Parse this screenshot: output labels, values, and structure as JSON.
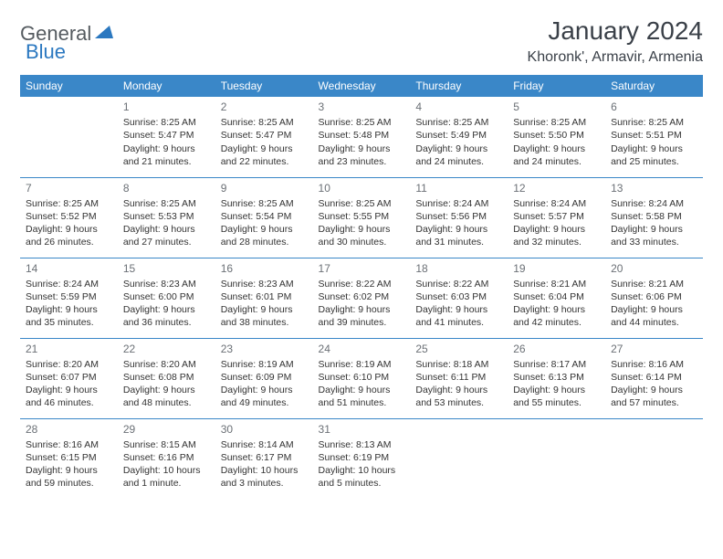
{
  "logo": {
    "general": "General",
    "blue": "Blue"
  },
  "title": "January 2024",
  "location": "Khoronk', Armavir, Armenia",
  "colors": {
    "header_bg": "#3a87c8",
    "header_text": "#ffffff",
    "day_number": "#6b7076",
    "rule": "#3a87c8",
    "logo_gray": "#555b60",
    "logo_blue": "#2b78c0"
  },
  "weekdays": [
    "Sunday",
    "Monday",
    "Tuesday",
    "Wednesday",
    "Thursday",
    "Friday",
    "Saturday"
  ],
  "weeks": [
    [
      null,
      {
        "n": "1",
        "sr": "Sunrise: 8:25 AM",
        "ss": "Sunset: 5:47 PM",
        "dl": "Daylight: 9 hours and 21 minutes."
      },
      {
        "n": "2",
        "sr": "Sunrise: 8:25 AM",
        "ss": "Sunset: 5:47 PM",
        "dl": "Daylight: 9 hours and 22 minutes."
      },
      {
        "n": "3",
        "sr": "Sunrise: 8:25 AM",
        "ss": "Sunset: 5:48 PM",
        "dl": "Daylight: 9 hours and 23 minutes."
      },
      {
        "n": "4",
        "sr": "Sunrise: 8:25 AM",
        "ss": "Sunset: 5:49 PM",
        "dl": "Daylight: 9 hours and 24 minutes."
      },
      {
        "n": "5",
        "sr": "Sunrise: 8:25 AM",
        "ss": "Sunset: 5:50 PM",
        "dl": "Daylight: 9 hours and 24 minutes."
      },
      {
        "n": "6",
        "sr": "Sunrise: 8:25 AM",
        "ss": "Sunset: 5:51 PM",
        "dl": "Daylight: 9 hours and 25 minutes."
      }
    ],
    [
      {
        "n": "7",
        "sr": "Sunrise: 8:25 AM",
        "ss": "Sunset: 5:52 PM",
        "dl": "Daylight: 9 hours and 26 minutes."
      },
      {
        "n": "8",
        "sr": "Sunrise: 8:25 AM",
        "ss": "Sunset: 5:53 PM",
        "dl": "Daylight: 9 hours and 27 minutes."
      },
      {
        "n": "9",
        "sr": "Sunrise: 8:25 AM",
        "ss": "Sunset: 5:54 PM",
        "dl": "Daylight: 9 hours and 28 minutes."
      },
      {
        "n": "10",
        "sr": "Sunrise: 8:25 AM",
        "ss": "Sunset: 5:55 PM",
        "dl": "Daylight: 9 hours and 30 minutes."
      },
      {
        "n": "11",
        "sr": "Sunrise: 8:24 AM",
        "ss": "Sunset: 5:56 PM",
        "dl": "Daylight: 9 hours and 31 minutes."
      },
      {
        "n": "12",
        "sr": "Sunrise: 8:24 AM",
        "ss": "Sunset: 5:57 PM",
        "dl": "Daylight: 9 hours and 32 minutes."
      },
      {
        "n": "13",
        "sr": "Sunrise: 8:24 AM",
        "ss": "Sunset: 5:58 PM",
        "dl": "Daylight: 9 hours and 33 minutes."
      }
    ],
    [
      {
        "n": "14",
        "sr": "Sunrise: 8:24 AM",
        "ss": "Sunset: 5:59 PM",
        "dl": "Daylight: 9 hours and 35 minutes."
      },
      {
        "n": "15",
        "sr": "Sunrise: 8:23 AM",
        "ss": "Sunset: 6:00 PM",
        "dl": "Daylight: 9 hours and 36 minutes."
      },
      {
        "n": "16",
        "sr": "Sunrise: 8:23 AM",
        "ss": "Sunset: 6:01 PM",
        "dl": "Daylight: 9 hours and 38 minutes."
      },
      {
        "n": "17",
        "sr": "Sunrise: 8:22 AM",
        "ss": "Sunset: 6:02 PM",
        "dl": "Daylight: 9 hours and 39 minutes."
      },
      {
        "n": "18",
        "sr": "Sunrise: 8:22 AM",
        "ss": "Sunset: 6:03 PM",
        "dl": "Daylight: 9 hours and 41 minutes."
      },
      {
        "n": "19",
        "sr": "Sunrise: 8:21 AM",
        "ss": "Sunset: 6:04 PM",
        "dl": "Daylight: 9 hours and 42 minutes."
      },
      {
        "n": "20",
        "sr": "Sunrise: 8:21 AM",
        "ss": "Sunset: 6:06 PM",
        "dl": "Daylight: 9 hours and 44 minutes."
      }
    ],
    [
      {
        "n": "21",
        "sr": "Sunrise: 8:20 AM",
        "ss": "Sunset: 6:07 PM",
        "dl": "Daylight: 9 hours and 46 minutes."
      },
      {
        "n": "22",
        "sr": "Sunrise: 8:20 AM",
        "ss": "Sunset: 6:08 PM",
        "dl": "Daylight: 9 hours and 48 minutes."
      },
      {
        "n": "23",
        "sr": "Sunrise: 8:19 AM",
        "ss": "Sunset: 6:09 PM",
        "dl": "Daylight: 9 hours and 49 minutes."
      },
      {
        "n": "24",
        "sr": "Sunrise: 8:19 AM",
        "ss": "Sunset: 6:10 PM",
        "dl": "Daylight: 9 hours and 51 minutes."
      },
      {
        "n": "25",
        "sr": "Sunrise: 8:18 AM",
        "ss": "Sunset: 6:11 PM",
        "dl": "Daylight: 9 hours and 53 minutes."
      },
      {
        "n": "26",
        "sr": "Sunrise: 8:17 AM",
        "ss": "Sunset: 6:13 PM",
        "dl": "Daylight: 9 hours and 55 minutes."
      },
      {
        "n": "27",
        "sr": "Sunrise: 8:16 AM",
        "ss": "Sunset: 6:14 PM",
        "dl": "Daylight: 9 hours and 57 minutes."
      }
    ],
    [
      {
        "n": "28",
        "sr": "Sunrise: 8:16 AM",
        "ss": "Sunset: 6:15 PM",
        "dl": "Daylight: 9 hours and 59 minutes."
      },
      {
        "n": "29",
        "sr": "Sunrise: 8:15 AM",
        "ss": "Sunset: 6:16 PM",
        "dl": "Daylight: 10 hours and 1 minute."
      },
      {
        "n": "30",
        "sr": "Sunrise: 8:14 AM",
        "ss": "Sunset: 6:17 PM",
        "dl": "Daylight: 10 hours and 3 minutes."
      },
      {
        "n": "31",
        "sr": "Sunrise: 8:13 AM",
        "ss": "Sunset: 6:19 PM",
        "dl": "Daylight: 10 hours and 5 minutes."
      },
      null,
      null,
      null
    ]
  ]
}
